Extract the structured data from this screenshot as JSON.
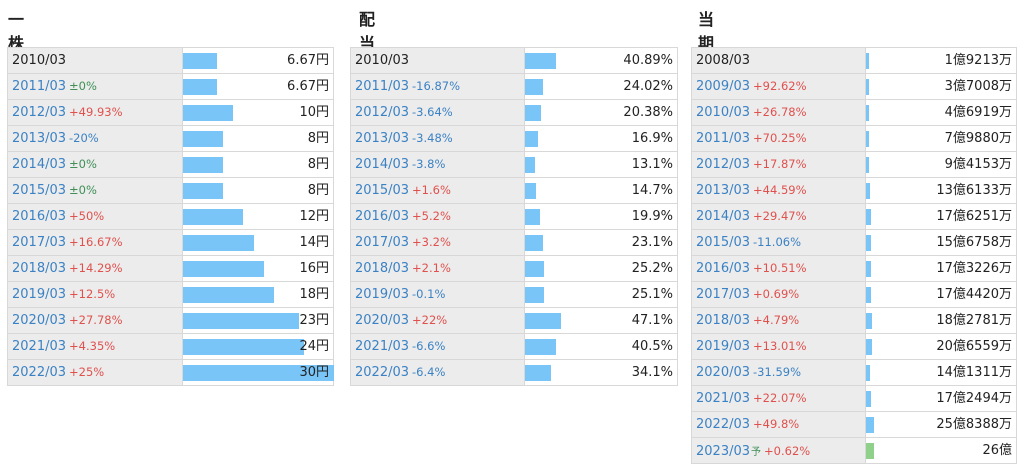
{
  "colors": {
    "bar": "#7ac5f7",
    "forecast_bar": "#8fd18a",
    "up": "#e0514d",
    "down": "#3b82c4",
    "flat": "#3f8f57",
    "label_bg": "#ececec"
  },
  "dividend": {
    "title": "一株配当",
    "rows": [
      {
        "year": "2010/03",
        "change": "",
        "dir": "",
        "value": "6.67円",
        "amount": 6.67
      },
      {
        "year": "2011/03",
        "change": "±0%",
        "dir": "flat",
        "value": "6.67円",
        "amount": 6.67
      },
      {
        "year": "2012/03",
        "change": "+49.93%",
        "dir": "up",
        "value": "10円",
        "amount": 10
      },
      {
        "year": "2013/03",
        "change": "-20%",
        "dir": "down",
        "value": "8円",
        "amount": 8
      },
      {
        "year": "2014/03",
        "change": "±0%",
        "dir": "flat",
        "value": "8円",
        "amount": 8
      },
      {
        "year": "2015/03",
        "change": "±0%",
        "dir": "flat",
        "value": "8円",
        "amount": 8
      },
      {
        "year": "2016/03",
        "change": "+50%",
        "dir": "up",
        "value": "12円",
        "amount": 12
      },
      {
        "year": "2017/03",
        "change": "+16.67%",
        "dir": "up",
        "value": "14円",
        "amount": 14
      },
      {
        "year": "2018/03",
        "change": "+14.29%",
        "dir": "up",
        "value": "16円",
        "amount": 16
      },
      {
        "year": "2019/03",
        "change": "+12.5%",
        "dir": "up",
        "value": "18円",
        "amount": 18
      },
      {
        "year": "2020/03",
        "change": "+27.78%",
        "dir": "up",
        "value": "23円",
        "amount": 23
      },
      {
        "year": "2021/03",
        "change": "+4.35%",
        "dir": "up",
        "value": "24円",
        "amount": 24
      },
      {
        "year": "2022/03",
        "change": "+25%",
        "dir": "up",
        "value": "30円",
        "amount": 30
      }
    ]
  },
  "payout": {
    "title": "配当性向",
    "rows": [
      {
        "year": "2010/03",
        "change": "",
        "dir": "",
        "value": "40.89%",
        "amount": 40.89
      },
      {
        "year": "2011/03",
        "change": "-16.87%",
        "dir": "down",
        "value": "24.02%",
        "amount": 24.02
      },
      {
        "year": "2012/03",
        "change": "-3.64%",
        "dir": "down",
        "value": "20.38%",
        "amount": 20.38
      },
      {
        "year": "2013/03",
        "change": "-3.48%",
        "dir": "down",
        "value": "16.9%",
        "amount": 16.9
      },
      {
        "year": "2014/03",
        "change": "-3.8%",
        "dir": "down",
        "value": "13.1%",
        "amount": 13.1
      },
      {
        "year": "2015/03",
        "change": "+1.6%",
        "dir": "up",
        "value": "14.7%",
        "amount": 14.7
      },
      {
        "year": "2016/03",
        "change": "+5.2%",
        "dir": "up",
        "value": "19.9%",
        "amount": 19.9
      },
      {
        "year": "2017/03",
        "change": "+3.2%",
        "dir": "up",
        "value": "23.1%",
        "amount": 23.1
      },
      {
        "year": "2018/03",
        "change": "+2.1%",
        "dir": "up",
        "value": "25.2%",
        "amount": 25.2
      },
      {
        "year": "2019/03",
        "change": "-0.1%",
        "dir": "down",
        "value": "25.1%",
        "amount": 25.1
      },
      {
        "year": "2020/03",
        "change": "+22%",
        "dir": "up",
        "value": "47.1%",
        "amount": 47.1
      },
      {
        "year": "2021/03",
        "change": "-6.6%",
        "dir": "down",
        "value": "40.5%",
        "amount": 40.5
      },
      {
        "year": "2022/03",
        "change": "-6.4%",
        "dir": "down",
        "value": "34.1%",
        "amount": 34.1
      }
    ]
  },
  "net_income": {
    "title": "当期純利益",
    "rows": [
      {
        "year": "2008/03",
        "change": "",
        "dir": "",
        "value": "1億9213万",
        "amount": 192130000
      },
      {
        "year": "2009/03",
        "change": "+92.62%",
        "dir": "up",
        "value": "3億7008万",
        "amount": 370080000
      },
      {
        "year": "2010/03",
        "change": "+26.78%",
        "dir": "up",
        "value": "4億6919万",
        "amount": 469190000
      },
      {
        "year": "2011/03",
        "change": "+70.25%",
        "dir": "up",
        "value": "7億9880万",
        "amount": 798800000
      },
      {
        "year": "2012/03",
        "change": "+17.87%",
        "dir": "up",
        "value": "9億4153万",
        "amount": 941530000
      },
      {
        "year": "2013/03",
        "change": "+44.59%",
        "dir": "up",
        "value": "13億6133万",
        "amount": 1361330000
      },
      {
        "year": "2014/03",
        "change": "+29.47%",
        "dir": "up",
        "value": "17億6251万",
        "amount": 1762510000
      },
      {
        "year": "2015/03",
        "change": "-11.06%",
        "dir": "down",
        "value": "15億6758万",
        "amount": 1567580000
      },
      {
        "year": "2016/03",
        "change": "+10.51%",
        "dir": "up",
        "value": "17億3226万",
        "amount": 1732260000
      },
      {
        "year": "2017/03",
        "change": "+0.69%",
        "dir": "up",
        "value": "17億4420万",
        "amount": 1744200000
      },
      {
        "year": "2018/03",
        "change": "+4.79%",
        "dir": "up",
        "value": "18億2781万",
        "amount": 1827810000
      },
      {
        "year": "2019/03",
        "change": "+13.01%",
        "dir": "up",
        "value": "20億6559万",
        "amount": 2065590000
      },
      {
        "year": "2020/03",
        "change": "-31.59%",
        "dir": "down",
        "value": "14億1311万",
        "amount": 1413110000
      },
      {
        "year": "2021/03",
        "change": "+22.07%",
        "dir": "up",
        "value": "17億2494万",
        "amount": 1724940000
      },
      {
        "year": "2022/03",
        "change": "+49.8%",
        "dir": "up",
        "value": "25億8388万",
        "amount": 2583880000
      },
      {
        "year": "2023/03",
        "forecast": "予",
        "change": "+0.62%",
        "dir": "up",
        "value": "26億",
        "amount": 2600000000
      }
    ]
  }
}
